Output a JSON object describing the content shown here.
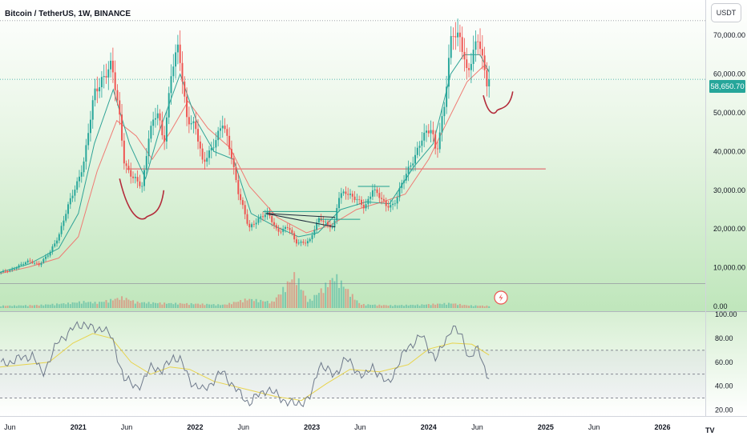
{
  "chart_title": "Bitcoin / TetherUS, 1W, BINANCE",
  "currency_button": "USDT",
  "last_price_label": "58,650.70",
  "logo_text": "TV",
  "colors": {
    "up": "#26a69a",
    "down": "#ef5350",
    "ma_fast": "#2fa397",
    "ma_slow": "#ef7b73",
    "rsi_line": "#6f7a8c",
    "rsi_ma": "#e8d44d",
    "support_line": "#e0525a",
    "cup_curve": "#b32b3a",
    "triangle": "#1c2a3a",
    "flag": "#1e9e8e",
    "background_top": "#ffffff",
    "background_bottom": "#b9e3b5"
  },
  "chart_data": [
    {
      "type": "candlestick",
      "name": "price",
      "x_axis_labels": [
        "Jun",
        "2021",
        "Jun",
        "2022",
        "Jun",
        "2023",
        "Jun",
        "2024",
        "Jun",
        "2025",
        "Jun",
        "2026"
      ],
      "x_axis_label_dates": [
        "2020-06-01",
        "2021-01-01",
        "2021-06-01",
        "2022-01-01",
        "2022-06-01",
        "2023-01-01",
        "2023-06-01",
        "2024-01-01",
        "2024-06-01",
        "2025-01-01",
        "2025-06-01",
        "2026-01-01"
      ],
      "y_ticks": [
        0,
        10000,
        20000,
        30000,
        40000,
        50000,
        60000,
        70000
      ],
      "y_tick_labels": [
        "0.00",
        "10,000.00",
        "20,000.00",
        "30,000.00",
        "40,000.00",
        "50,000.00",
        "60,000.00",
        "70,000.00"
      ],
      "ylim": [
        0,
        75000
      ],
      "xlim": [
        "2020-05-01",
        "2026-05-15"
      ],
      "last_price": 58650.7,
      "price_path": [
        [
          "2020-05-01",
          8700
        ],
        [
          "2020-06-01",
          9400
        ],
        [
          "2020-07-01",
          10500
        ],
        [
          "2020-08-01",
          11800
        ],
        [
          "2020-09-01",
          10800
        ],
        [
          "2020-10-01",
          13500
        ],
        [
          "2020-11-01",
          18500
        ],
        [
          "2020-12-01",
          26000
        ],
        [
          "2021-01-01",
          33000
        ],
        [
          "2021-01-20",
          38000
        ],
        [
          "2021-02-20",
          55000
        ],
        [
          "2021-03-15",
          59000
        ],
        [
          "2021-04-15",
          62000
        ],
        [
          "2021-05-12",
          48000
        ],
        [
          "2021-05-25",
          37000
        ],
        [
          "2021-06-20",
          33000
        ],
        [
          "2021-07-20",
          31000
        ],
        [
          "2021-08-10",
          45000
        ],
        [
          "2021-09-05",
          50000
        ],
        [
          "2021-09-25",
          42000
        ],
        [
          "2021-10-20",
          62000
        ],
        [
          "2021-11-10",
          66500
        ],
        [
          "2021-12-05",
          49000
        ],
        [
          "2022-01-01",
          47000
        ],
        [
          "2022-01-25",
          36500
        ],
        [
          "2022-03-28",
          47000
        ],
        [
          "2022-04-25",
          39000
        ],
        [
          "2022-05-15",
          30000
        ],
        [
          "2022-06-18",
          20000
        ],
        [
          "2022-07-20",
          23000
        ],
        [
          "2022-08-15",
          24000
        ],
        [
          "2022-09-15",
          19500
        ],
        [
          "2022-10-20",
          20500
        ],
        [
          "2022-11-10",
          16500
        ],
        [
          "2022-12-25",
          16800
        ],
        [
          "2023-01-25",
          23000
        ],
        [
          "2023-03-10",
          20000
        ],
        [
          "2023-03-25",
          28000
        ],
        [
          "2023-04-15",
          30000
        ],
        [
          "2023-06-15",
          25500
        ],
        [
          "2023-07-10",
          30500
        ],
        [
          "2023-08-20",
          26000
        ],
        [
          "2023-09-15",
          26500
        ],
        [
          "2023-10-25",
          34500
        ],
        [
          "2023-12-10",
          43000
        ],
        [
          "2024-01-10",
          46000
        ],
        [
          "2024-01-25",
          40000
        ],
        [
          "2024-02-20",
          52000
        ],
        [
          "2024-03-14",
          71000
        ],
        [
          "2024-04-10",
          70000
        ],
        [
          "2024-05-01",
          59000
        ],
        [
          "2024-06-05",
          70500
        ],
        [
          "2024-06-25",
          60500
        ],
        [
          "2024-07-05",
          56000
        ],
        [
          "2024-07-08",
          58650.7
        ]
      ],
      "ma_fast": [
        [
          "2020-05-01",
          8800
        ],
        [
          "2020-08-01",
          11000
        ],
        [
          "2020-11-01",
          15000
        ],
        [
          "2021-01-01",
          24000
        ],
        [
          "2021-02-20",
          42000
        ],
        [
          "2021-04-20",
          56000
        ],
        [
          "2021-06-10",
          42000
        ],
        [
          "2021-07-30",
          33000
        ],
        [
          "2021-09-10",
          45000
        ],
        [
          "2021-11-15",
          60000
        ],
        [
          "2022-01-05",
          48000
        ],
        [
          "2022-03-01",
          40000
        ],
        [
          "2022-05-01",
          38000
        ],
        [
          "2022-06-25",
          24000
        ],
        [
          "2022-09-01",
          21000
        ],
        [
          "2022-11-20",
          18000
        ],
        [
          "2023-01-20",
          19000
        ],
        [
          "2023-04-01",
          25000
        ],
        [
          "2023-06-20",
          27000
        ],
        [
          "2023-09-01",
          26500
        ],
        [
          "2023-11-15",
          36000
        ],
        [
          "2024-01-15",
          42000
        ],
        [
          "2024-03-10",
          60000
        ],
        [
          "2024-04-20",
          65000
        ],
        [
          "2024-06-10",
          65000
        ],
        [
          "2024-07-08",
          60500
        ]
      ],
      "ma_slow": [
        [
          "2020-05-01",
          8500
        ],
        [
          "2020-08-01",
          10200
        ],
        [
          "2020-11-01",
          12500
        ],
        [
          "2021-01-01",
          18000
        ],
        [
          "2021-03-01",
          35000
        ],
        [
          "2021-05-01",
          48000
        ],
        [
          "2021-07-01",
          44000
        ],
        [
          "2021-08-20",
          38000
        ],
        [
          "2021-10-15",
          45000
        ],
        [
          "2021-12-10",
          53000
        ],
        [
          "2022-02-10",
          46000
        ],
        [
          "2022-04-20",
          41000
        ],
        [
          "2022-06-20",
          31000
        ],
        [
          "2022-09-15",
          23000
        ],
        [
          "2022-12-15",
          19000
        ],
        [
          "2023-03-01",
          21000
        ],
        [
          "2023-05-20",
          25000
        ],
        [
          "2023-08-10",
          27000
        ],
        [
          "2023-10-20",
          29000
        ],
        [
          "2024-01-01",
          38000
        ],
        [
          "2024-03-01",
          48000
        ],
        [
          "2024-04-30",
          58000
        ],
        [
          "2024-06-20",
          62000
        ],
        [
          "2024-07-08",
          61000
        ]
      ],
      "volume_relative": [
        [
          "2020-06-01",
          0.22
        ],
        [
          "2020-09-01",
          0.28
        ],
        [
          "2020-12-01",
          0.45
        ],
        [
          "2021-01-15",
          0.6
        ],
        [
          "2021-03-01",
          0.5
        ],
        [
          "2021-05-20",
          1.0
        ],
        [
          "2021-07-01",
          0.55
        ],
        [
          "2021-10-01",
          0.45
        ],
        [
          "2022-01-01",
          0.4
        ],
        [
          "2022-04-01",
          0.3
        ],
        [
          "2022-06-15",
          0.85
        ],
        [
          "2022-09-01",
          0.55
        ],
        [
          "2022-11-10",
          3.2
        ],
        [
          "2022-12-20",
          0.6
        ],
        [
          "2023-01-20",
          1.4
        ],
        [
          "2023-03-15",
          3.0
        ],
        [
          "2023-06-01",
          0.35
        ],
        [
          "2023-09-01",
          0.25
        ],
        [
          "2023-12-01",
          0.3
        ],
        [
          "2024-03-10",
          0.45
        ],
        [
          "2024-05-01",
          0.25
        ],
        [
          "2024-07-08",
          0.2
        ]
      ],
      "annotations": {
        "support_level": 35500,
        "support_line_start": "2021-06-01",
        "support_line_end": "2025-01-01",
        "cup_1": {
          "start": [
            "2021-05-10",
            33000
          ],
          "bottom": [
            "2021-08-01",
            23000
          ],
          "end": [
            "2021-09-25",
            30000
          ]
        },
        "cup_2": {
          "start": [
            "2024-06-20",
            54500
          ],
          "bottom": [
            "2024-08-01",
            50500
          ],
          "end": [
            "2024-09-20",
            55500
          ]
        },
        "triangle_top": [
          [
            "2022-08-10",
            24000
          ],
          [
            "2023-03-15",
            20500
          ]
        ],
        "triangle_bottom": [
          [
            "2022-08-10",
            24000
          ],
          [
            "2023-03-15",
            23000
          ]
        ],
        "flag_lines": [
          [
            "2022-08-01",
            "2023-03-20",
            24500
          ],
          [
            "2023-01-20",
            "2023-06-01",
            22500
          ],
          [
            "2023-05-25",
            "2023-09-01",
            31000
          ]
        ]
      }
    },
    {
      "type": "line",
      "name": "rsi",
      "y_ticks": [
        20,
        40,
        60,
        80,
        100
      ],
      "y_tick_labels": [
        "20.00",
        "40.00",
        "60.00",
        "80.00",
        "100.00"
      ],
      "ylim": [
        17,
        100
      ],
      "band_upper": 70,
      "band_lower": 30,
      "mid_line": 50,
      "rsi": [
        [
          "2020-05-01",
          58
        ],
        [
          "2020-08-10",
          66
        ],
        [
          "2020-09-10",
          50
        ],
        [
          "2020-11-01",
          78
        ],
        [
          "2020-12-15",
          88
        ],
        [
          "2021-01-20",
          93
        ],
        [
          "2021-02-20",
          86
        ],
        [
          "2021-03-20",
          90
        ],
        [
          "2021-04-15",
          80
        ],
        [
          "2021-05-25",
          46
        ],
        [
          "2021-06-25",
          40
        ],
        [
          "2021-07-20",
          42
        ],
        [
          "2021-08-20",
          58
        ],
        [
          "2021-09-20",
          52
        ],
        [
          "2021-10-25",
          65
        ],
        [
          "2021-11-15",
          62
        ],
        [
          "2021-12-15",
          45
        ],
        [
          "2022-01-25",
          36
        ],
        [
          "2022-03-28",
          52
        ],
        [
          "2022-05-15",
          35
        ],
        [
          "2022-06-18",
          26
        ],
        [
          "2022-08-15",
          38
        ],
        [
          "2022-09-25",
          30
        ],
        [
          "2022-11-10",
          24
        ],
        [
          "2022-12-30",
          31
        ],
        [
          "2023-01-25",
          60
        ],
        [
          "2023-03-10",
          48
        ],
        [
          "2023-04-15",
          63
        ],
        [
          "2023-06-15",
          47
        ],
        [
          "2023-07-10",
          57
        ],
        [
          "2023-08-25",
          41
        ],
        [
          "2023-10-25",
          72
        ],
        [
          "2023-12-10",
          82
        ],
        [
          "2024-01-25",
          62
        ],
        [
          "2024-03-14",
          90
        ],
        [
          "2024-04-20",
          79
        ],
        [
          "2024-05-05",
          63
        ],
        [
          "2024-06-05",
          71
        ],
        [
          "2024-06-30",
          51
        ],
        [
          "2024-07-08",
          48
        ]
      ],
      "rsi_ma": [
        [
          "2020-05-01",
          56
        ],
        [
          "2020-10-01",
          60
        ],
        [
          "2020-12-15",
          76
        ],
        [
          "2021-02-15",
          84
        ],
        [
          "2021-04-15",
          80
        ],
        [
          "2021-06-15",
          60
        ],
        [
          "2021-08-15",
          50
        ],
        [
          "2021-10-15",
          56
        ],
        [
          "2021-12-15",
          54
        ],
        [
          "2022-03-01",
          44
        ],
        [
          "2022-06-15",
          37
        ],
        [
          "2022-09-15",
          31
        ],
        [
          "2022-11-30",
          28
        ],
        [
          "2023-02-15",
          42
        ],
        [
          "2023-04-30",
          54
        ],
        [
          "2023-08-01",
          52
        ],
        [
          "2023-10-30",
          58
        ],
        [
          "2024-01-01",
          71
        ],
        [
          "2024-03-15",
          76
        ],
        [
          "2024-05-15",
          75
        ],
        [
          "2024-07-08",
          66
        ]
      ]
    }
  ]
}
